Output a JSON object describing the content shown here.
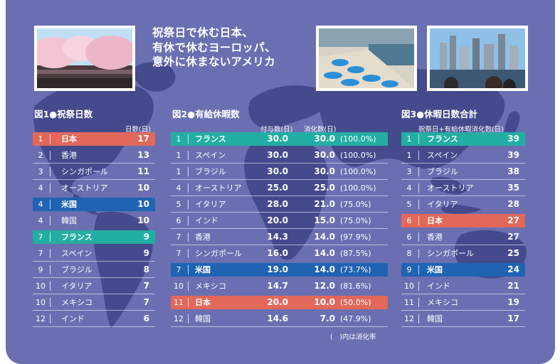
{
  "headline": [
    "祝祭日で休む日本、",
    "有休で休むヨーロッパ、",
    "意外に休まないアメリカ"
  ],
  "photos": [
    {
      "name": "cherry-blossom-photo"
    },
    {
      "name": "beach-umbrellas-photo"
    },
    {
      "name": "city-skyline-photo"
    }
  ],
  "colors": {
    "background": "#6b6fb2",
    "japan": "#e2685a",
    "france": "#23aea3",
    "usa": "#1f63b3"
  },
  "chart_data": [
    {
      "type": "table",
      "title": "図1●祝祭日数",
      "columns": [
        "日数(日)"
      ],
      "rows": [
        {
          "rank": "1",
          "country": "日本",
          "values": [
            "17"
          ],
          "highlight": "red"
        },
        {
          "rank": "2",
          "country": "香港",
          "values": [
            "13"
          ]
        },
        {
          "rank": "3",
          "country": "シンガポール",
          "values": [
            "11"
          ]
        },
        {
          "rank": "4",
          "country": "オーストリア",
          "values": [
            "10"
          ]
        },
        {
          "rank": "4",
          "country": "米国",
          "values": [
            "10"
          ],
          "highlight": "blue"
        },
        {
          "rank": "4",
          "country": "韓国",
          "values": [
            "10"
          ]
        },
        {
          "rank": "7",
          "country": "フランス",
          "values": [
            "9"
          ],
          "highlight": "teal"
        },
        {
          "rank": "7",
          "country": "スペイン",
          "values": [
            "9"
          ]
        },
        {
          "rank": "9",
          "country": "ブラジル",
          "values": [
            "8"
          ]
        },
        {
          "rank": "10",
          "country": "イタリア",
          "values": [
            "7"
          ]
        },
        {
          "rank": "10",
          "country": "メキシコ",
          "values": [
            "7"
          ]
        },
        {
          "rank": "12",
          "country": "インド",
          "values": [
            "6"
          ]
        }
      ]
    },
    {
      "type": "table",
      "title": "図2●有給休暇数",
      "columns": [
        "付与数(日)",
        "消化数(日)"
      ],
      "note": "(　)内は消化率",
      "rows": [
        {
          "rank": "1",
          "country": "フランス",
          "values": [
            "30.0",
            "30.0"
          ],
          "rate": "(100.0%)",
          "highlight": "teal"
        },
        {
          "rank": "1",
          "country": "スペイン",
          "values": [
            "30.0",
            "30.0"
          ],
          "rate": "(100.0%)"
        },
        {
          "rank": "1",
          "country": "ブラジル",
          "values": [
            "30.0",
            "30.0"
          ],
          "rate": "(100.0%)"
        },
        {
          "rank": "4",
          "country": "オーストリア",
          "values": [
            "25.0",
            "25.0"
          ],
          "rate": "(100.0%)"
        },
        {
          "rank": "5",
          "country": "イタリア",
          "values": [
            "28.0",
            "21.0"
          ],
          "rate": "(75.0%)"
        },
        {
          "rank": "6",
          "country": "インド",
          "values": [
            "20.0",
            "15.0"
          ],
          "rate": "(75.0%)"
        },
        {
          "rank": "7",
          "country": "香港",
          "values": [
            "14.3",
            "14.0"
          ],
          "rate": "(97.9%)"
        },
        {
          "rank": "7",
          "country": "シンガポール",
          "values": [
            "16.0",
            "14.0"
          ],
          "rate": "(87.5%)"
        },
        {
          "rank": "7",
          "country": "米国",
          "values": [
            "19.0",
            "14.0"
          ],
          "rate": "(73.7%)",
          "highlight": "blue"
        },
        {
          "rank": "10",
          "country": "メキシコ",
          "values": [
            "14.7",
            "12.0"
          ],
          "rate": "(81.6%)"
        },
        {
          "rank": "11",
          "country": "日本",
          "values": [
            "20.0",
            "10.0"
          ],
          "rate": "(50.0%)",
          "highlight": "red"
        },
        {
          "rank": "12",
          "country": "韓国",
          "values": [
            "14.6",
            "7.0"
          ],
          "rate": "(47.9%)"
        }
      ]
    },
    {
      "type": "table",
      "title": "図3●休暇日数合計",
      "columns": [
        "祝祭日+有給休暇消化数(日)"
      ],
      "rows": [
        {
          "rank": "1",
          "country": "フランス",
          "values": [
            "39"
          ],
          "highlight": "teal"
        },
        {
          "rank": "1",
          "country": "スペイン",
          "values": [
            "39"
          ]
        },
        {
          "rank": "3",
          "country": "ブラジル",
          "values": [
            "38"
          ]
        },
        {
          "rank": "4",
          "country": "オーストリア",
          "values": [
            "35"
          ]
        },
        {
          "rank": "5",
          "country": "イタリア",
          "values": [
            "28"
          ]
        },
        {
          "rank": "6",
          "country": "日本",
          "values": [
            "27"
          ],
          "highlight": "red"
        },
        {
          "rank": "6",
          "country": "香港",
          "values": [
            "27"
          ]
        },
        {
          "rank": "8",
          "country": "シンガポール",
          "values": [
            "25"
          ]
        },
        {
          "rank": "9",
          "country": "米国",
          "values": [
            "24"
          ],
          "highlight": "blue"
        },
        {
          "rank": "10",
          "country": "インド",
          "values": [
            "21"
          ]
        },
        {
          "rank": "11",
          "country": "メキシコ",
          "values": [
            "19"
          ]
        },
        {
          "rank": "12",
          "country": "韓国",
          "values": [
            "17"
          ]
        }
      ]
    }
  ]
}
